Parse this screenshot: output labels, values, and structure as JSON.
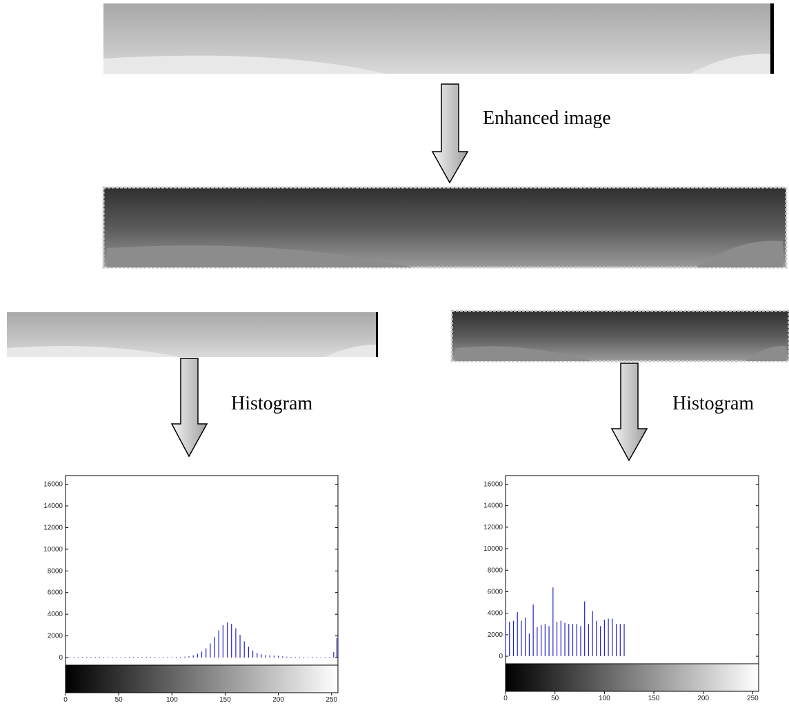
{
  "annotations": [
    "Enhanced image",
    "Histogram",
    "Histogram"
  ],
  "chart_data": [
    {
      "type": "stem",
      "color": "#2020d0",
      "x": [
        0,
        4,
        8,
        12,
        16,
        20,
        24,
        28,
        32,
        36,
        40,
        44,
        48,
        52,
        56,
        60,
        64,
        68,
        72,
        76,
        80,
        84,
        88,
        92,
        96,
        100,
        104,
        108,
        112,
        116,
        120,
        124,
        128,
        132,
        136,
        140,
        144,
        148,
        152,
        156,
        160,
        164,
        168,
        172,
        176,
        180,
        184,
        188,
        192,
        196,
        200,
        204,
        208,
        212,
        216,
        220,
        224,
        228,
        232,
        236,
        240,
        244,
        248,
        252,
        255
      ],
      "values": [
        70,
        60,
        55,
        60,
        65,
        60,
        58,
        62,
        60,
        55,
        60,
        64,
        60,
        58,
        62,
        60,
        57,
        60,
        63,
        60,
        58,
        61,
        60,
        62,
        60,
        58,
        60,
        64,
        80,
        120,
        200,
        350,
        550,
        850,
        1300,
        1900,
        2500,
        3000,
        3250,
        3100,
        2700,
        2100,
        1500,
        1000,
        650,
        420,
        300,
        230,
        200,
        180,
        160,
        110,
        80,
        70,
        65,
        60,
        60,
        58,
        60,
        62,
        60,
        58,
        60,
        500,
        1800
      ],
      "xlim": [
        0,
        256
      ],
      "ylim": [
        -700,
        16800
      ],
      "xticks": [
        0,
        50,
        100,
        150,
        200,
        250
      ],
      "yticks": [
        0,
        2000,
        4000,
        6000,
        8000,
        10000,
        12000,
        14000,
        16000
      ]
    },
    {
      "type": "stem",
      "color": "#2020d0",
      "x": [
        0,
        4,
        8,
        12,
        16,
        20,
        24,
        28,
        32,
        36,
        40,
        44,
        48,
        52,
        56,
        60,
        64,
        68,
        72,
        76,
        80,
        84,
        88,
        92,
        96,
        100,
        104,
        108,
        112,
        116,
        120
      ],
      "values": [
        3300,
        3200,
        3300,
        4100,
        3300,
        3600,
        2100,
        4800,
        2700,
        2900,
        3000,
        2800,
        6400,
        3200,
        3300,
        3100,
        3000,
        3000,
        3000,
        2800,
        5100,
        3000,
        4200,
        3300,
        2800,
        3400,
        3500,
        3500,
        3000,
        3000,
        3000
      ],
      "xlim": [
        0,
        256
      ],
      "ylim": [
        -700,
        16800
      ],
      "xticks": [
        0,
        50,
        100,
        150,
        200,
        250
      ],
      "yticks": [
        0,
        2000,
        4000,
        6000,
        8000,
        10000,
        12000,
        14000,
        16000
      ]
    }
  ]
}
